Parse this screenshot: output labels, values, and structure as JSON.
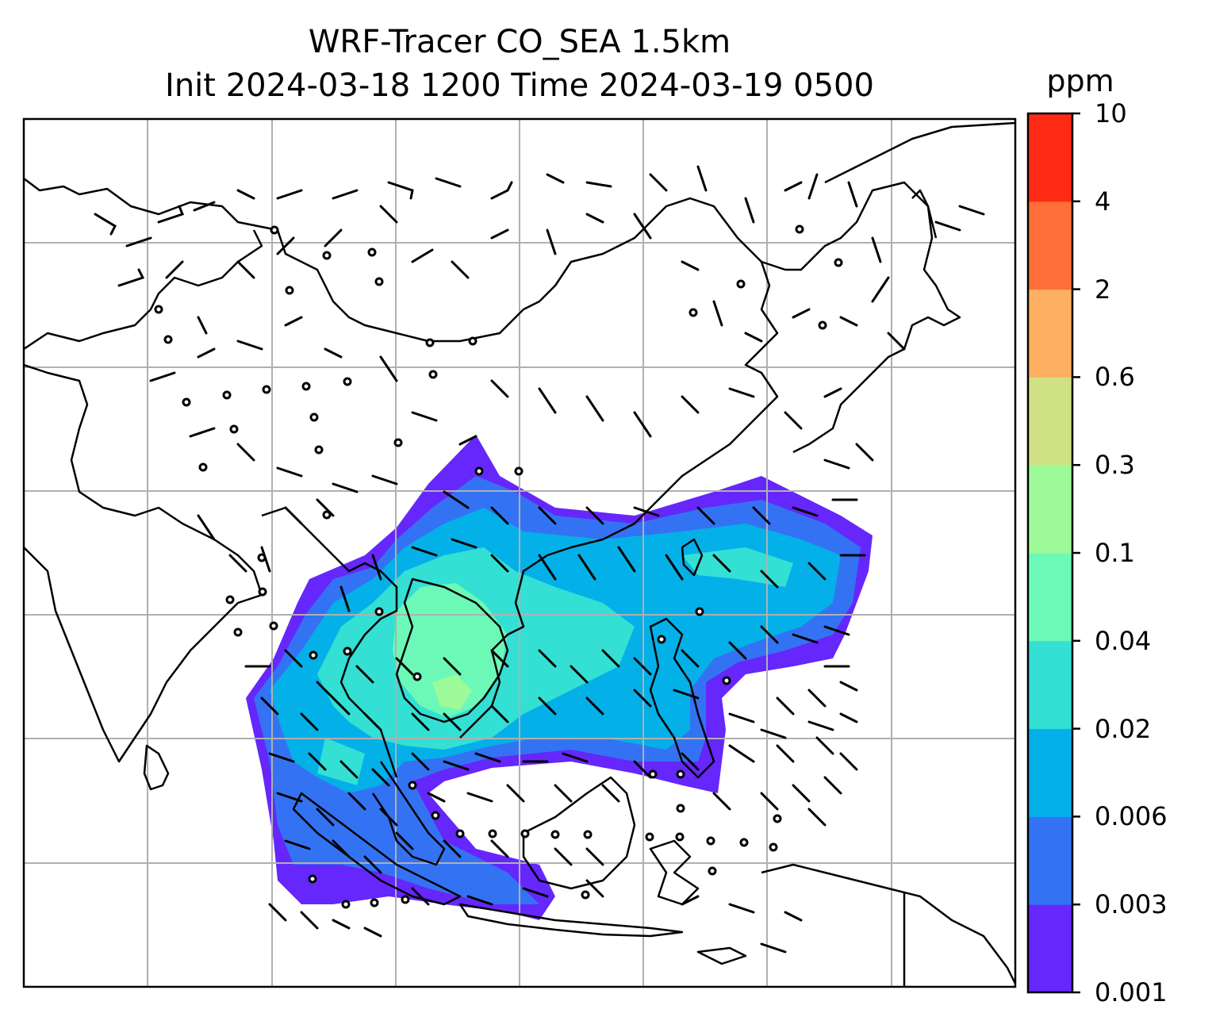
{
  "title": {
    "line1": "WRF-Tracer CO_SEA 1.5km",
    "line2": "Init 2024-03-18 1200 Time 2024-03-19 0500"
  },
  "colorbar": {
    "unit": "ppm",
    "levels": [
      "0.001",
      "0.003",
      "0.006",
      "0.02",
      "0.04",
      "0.1",
      "0.3",
      "0.6",
      "2",
      "4",
      "10"
    ],
    "colors": [
      "#6527fb",
      "#3373f3",
      "#04b0e8",
      "#34dfd4",
      "#6cf9b8",
      "#9cfa98",
      "#cfe184",
      "#feb061",
      "#ff6e39",
      "#ff2a13"
    ]
  },
  "map": {
    "projection_grid": "lat/lon gridlines",
    "land_outline_color": "#000000",
    "grid_color": "#b0b0b0",
    "wind_barbs": "black wind barbs; calm points drawn as small circles",
    "plume_region": "Southeast Asia / South China Sea"
  }
}
